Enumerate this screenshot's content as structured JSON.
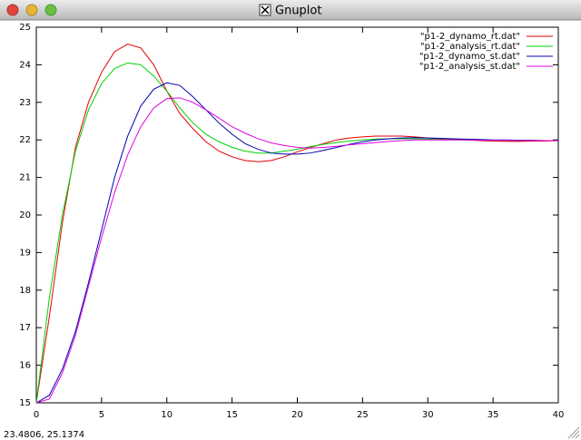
{
  "window_title": "Gnuplot",
  "status_text": "23.4806,  25.1374",
  "chart_data": {
    "type": "line",
    "x": [
      0,
      1,
      2,
      3,
      4,
      5,
      6,
      7,
      8,
      9,
      10,
      11,
      12,
      13,
      14,
      15,
      16,
      17,
      18,
      19,
      20,
      21,
      22,
      23,
      24,
      25,
      26,
      27,
      28,
      29,
      30,
      31,
      32,
      33,
      34,
      35,
      36,
      37,
      38,
      39,
      40
    ],
    "series": [
      {
        "name": "\"p1-2_dynamo_rt.dat\"",
        "color": "#e00000",
        "values": [
          15.0,
          17.3,
          19.8,
          21.8,
          23.0,
          23.8,
          24.35,
          24.55,
          24.45,
          24.0,
          23.3,
          22.7,
          22.3,
          21.95,
          21.7,
          21.55,
          21.45,
          21.42,
          21.45,
          21.55,
          21.68,
          21.8,
          21.9,
          22.0,
          22.05,
          22.08,
          22.1,
          22.1,
          22.1,
          22.08,
          22.05,
          22.03,
          22.02,
          22.0,
          21.98,
          21.97,
          21.96,
          21.96,
          21.97,
          21.97,
          21.98
        ]
      },
      {
        "name": "\"p1-2_analysis_rt.dat\"",
        "color": "#00d000",
        "values": [
          15.0,
          17.8,
          20.0,
          21.7,
          22.8,
          23.5,
          23.9,
          24.05,
          24.0,
          23.7,
          23.3,
          22.85,
          22.45,
          22.15,
          21.95,
          21.8,
          21.7,
          21.65,
          21.65,
          21.7,
          21.75,
          21.82,
          21.88,
          21.93,
          21.97,
          22.0,
          22.02,
          22.03,
          22.03,
          22.03,
          22.02,
          22.01,
          22.0,
          22.0,
          22.0,
          21.99,
          21.99,
          21.99,
          21.98,
          21.98,
          21.98
        ]
      },
      {
        "name": "\"p1-2_dynamo_st.dat\"",
        "color": "#0000b0",
        "values": [
          15.0,
          15.2,
          15.9,
          16.9,
          18.2,
          19.6,
          21.0,
          22.1,
          22.9,
          23.35,
          23.52,
          23.45,
          23.15,
          22.8,
          22.45,
          22.15,
          21.9,
          21.75,
          21.65,
          21.62,
          21.62,
          21.65,
          21.72,
          21.8,
          21.88,
          21.95,
          22.0,
          22.03,
          22.05,
          22.06,
          22.05,
          22.04,
          22.03,
          22.02,
          22.01,
          22.0,
          22.0,
          21.99,
          21.99,
          21.98,
          21.98
        ]
      },
      {
        "name": "\"p1-2_analysis_st.dat\"",
        "color": "#e000e0",
        "values": [
          15.0,
          15.1,
          15.8,
          16.8,
          18.1,
          19.4,
          20.6,
          21.6,
          22.35,
          22.85,
          23.1,
          23.12,
          23.0,
          22.8,
          22.58,
          22.35,
          22.18,
          22.03,
          21.92,
          21.85,
          21.8,
          21.78,
          21.8,
          21.83,
          21.87,
          21.9,
          21.93,
          21.96,
          21.98,
          22.0,
          22.0,
          22.0,
          22.0,
          22.0,
          21.99,
          21.99,
          21.99,
          21.98,
          21.98,
          21.98,
          21.98
        ]
      }
    ],
    "xlim": [
      0,
      40
    ],
    "xticks": [
      0,
      5,
      10,
      15,
      20,
      25,
      30,
      35,
      40
    ],
    "ylim": [
      15,
      25
    ],
    "yticks": [
      15,
      16,
      17,
      18,
      19,
      20,
      21,
      22,
      23,
      24,
      25
    ],
    "grid": false,
    "legend": "top-right"
  }
}
